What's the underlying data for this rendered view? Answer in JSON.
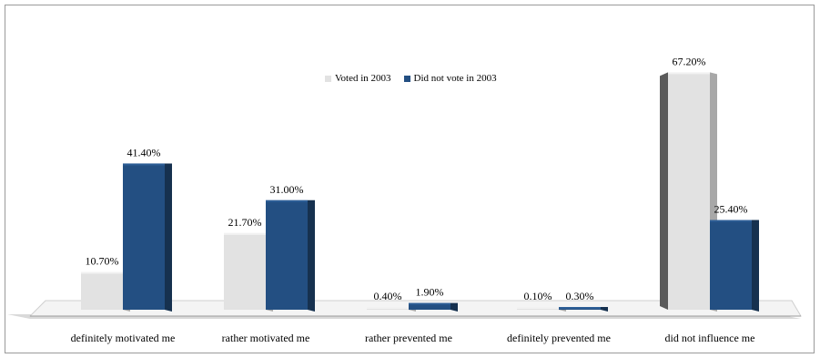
{
  "colors": {
    "voted": "#e2e2e2",
    "voted_side": "#a8a8a8",
    "did_not_vote": "#234f82",
    "did_not_vote_side": "#16314f",
    "floor": "#d9d9d9"
  },
  "chart_data": {
    "type": "bar",
    "categories": [
      "definitely motivated me",
      "rather motivated me",
      "rather prevented me",
      "definitely prevented me",
      "did not influence me"
    ],
    "series": [
      {
        "name": "Voted in 2003",
        "values": [
          10.7,
          21.7,
          0.4,
          0.1,
          67.2
        ],
        "labels": [
          "10.70%",
          "21.70%",
          "0.40%",
          "0.10%",
          "67.20%"
        ]
      },
      {
        "name": "Did not vote in 2003",
        "values": [
          41.4,
          31.0,
          1.9,
          0.3,
          25.4
        ],
        "labels": [
          "41.40%",
          "31.00%",
          "1.90%",
          "0.30%",
          "25.40%"
        ]
      }
    ],
    "ylim": [
      0,
      70
    ],
    "legend_position": "top-center",
    "grid": false
  }
}
